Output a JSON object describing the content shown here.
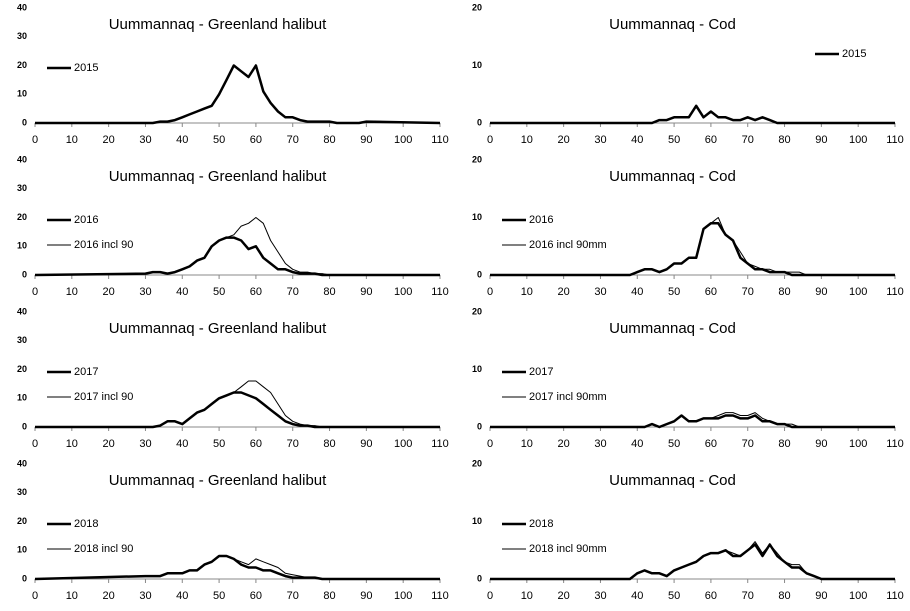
{
  "chart_data": [
    {
      "type": "line",
      "title": "Uummannaq - Greenland halibut",
      "legend": "left",
      "x": [
        0,
        30,
        32,
        34,
        36,
        38,
        40,
        42,
        44,
        46,
        48,
        50,
        52,
        54,
        56,
        58,
        60,
        62,
        64,
        66,
        68,
        70,
        72,
        74,
        76,
        78,
        80,
        82,
        84,
        86,
        88,
        90,
        110
      ],
      "xlim": [
        0,
        110
      ],
      "xticks": [
        0,
        10,
        20,
        30,
        40,
        50,
        60,
        70,
        80,
        90,
        100,
        110
      ],
      "ylim": [
        0,
        40
      ],
      "yticks": [
        0,
        10,
        20,
        30,
        40
      ],
      "series": [
        {
          "name": "2015",
          "color": "#000000",
          "width": 2.5,
          "values": [
            0,
            0,
            0,
            0.5,
            0.5,
            1,
            2,
            3,
            4,
            5,
            6,
            10,
            15,
            20,
            18,
            16,
            20,
            11,
            7,
            4,
            2,
            2,
            1,
            0.5,
            0.5,
            0.5,
            0.5,
            0,
            0,
            0,
            0,
            0.5,
            0
          ]
        }
      ]
    },
    {
      "type": "line",
      "title": "Uummannaq - Cod",
      "legend": "right",
      "x": [
        0,
        30,
        32,
        34,
        36,
        38,
        40,
        42,
        44,
        46,
        48,
        50,
        52,
        54,
        56,
        58,
        60,
        62,
        64,
        66,
        68,
        70,
        72,
        74,
        76,
        78,
        80,
        82,
        84,
        86,
        88,
        90,
        110
      ],
      "xlim": [
        0,
        110
      ],
      "xticks": [
        0,
        10,
        20,
        30,
        40,
        50,
        60,
        70,
        80,
        90,
        100,
        110
      ],
      "ylim": [
        0,
        20
      ],
      "yticks": [
        0,
        10,
        20
      ],
      "series": [
        {
          "name": "2015",
          "color": "#000000",
          "width": 2.5,
          "values": [
            0,
            0,
            0,
            0,
            0,
            0,
            0,
            0,
            0,
            0.5,
            0.5,
            1,
            1,
            1,
            3,
            1,
            2,
            1,
            1,
            0.5,
            0.5,
            1,
            0.5,
            1,
            0.5,
            0,
            0,
            0,
            0,
            0,
            0,
            0,
            0
          ]
        }
      ]
    },
    {
      "type": "line",
      "title": "Uummannaq - Greenland halibut",
      "legend": "left",
      "x": [
        0,
        30,
        32,
        34,
        36,
        38,
        40,
        42,
        44,
        46,
        48,
        50,
        52,
        54,
        56,
        58,
        60,
        62,
        64,
        66,
        68,
        70,
        72,
        74,
        76,
        78,
        80,
        82,
        84,
        86,
        88,
        90,
        110
      ],
      "xlim": [
        0,
        110
      ],
      "xticks": [
        0,
        10,
        20,
        30,
        40,
        50,
        60,
        70,
        80,
        90,
        100,
        110
      ],
      "ylim": [
        0,
        40
      ],
      "yticks": [
        0,
        10,
        20,
        30,
        40
      ],
      "series": [
        {
          "name": "2016",
          "color": "#000000",
          "width": 2.5,
          "values": [
            0,
            0.5,
            1,
            1,
            0.5,
            1,
            2,
            3,
            5,
            6,
            10,
            12,
            13,
            13,
            12,
            9,
            10,
            6,
            4,
            2,
            2,
            1,
            0.5,
            0.5,
            0.5,
            0,
            0,
            0,
            0,
            0,
            0,
            0,
            0
          ]
        },
        {
          "name": "2016 incl 90",
          "color": "#000000",
          "width": 1,
          "values": [
            0,
            0.5,
            1,
            1,
            0.5,
            1,
            2,
            3,
            5,
            6,
            10,
            12,
            13,
            14,
            17,
            18,
            20,
            18,
            12,
            8,
            4,
            2,
            1,
            1,
            0.5,
            0.5,
            0,
            0,
            0,
            0,
            0,
            0,
            0
          ]
        }
      ]
    },
    {
      "type": "line",
      "title": "Uummannaq - Cod",
      "legend": "left",
      "x": [
        0,
        30,
        32,
        34,
        36,
        38,
        40,
        42,
        44,
        46,
        48,
        50,
        52,
        54,
        56,
        58,
        60,
        62,
        64,
        66,
        68,
        70,
        72,
        74,
        76,
        78,
        80,
        82,
        84,
        86,
        88,
        90,
        110
      ],
      "xlim": [
        0,
        110
      ],
      "xticks": [
        0,
        10,
        20,
        30,
        40,
        50,
        60,
        70,
        80,
        90,
        100,
        110
      ],
      "ylim": [
        0,
        20
      ],
      "yticks": [
        0,
        10,
        20
      ],
      "series": [
        {
          "name": "2016",
          "color": "#000000",
          "width": 2.5,
          "values": [
            0,
            0,
            0,
            0,
            0,
            0,
            0.5,
            1,
            1,
            0.5,
            1,
            2,
            2,
            3,
            3,
            8,
            9,
            9,
            7,
            6,
            3,
            2,
            1,
            1,
            0.5,
            0.5,
            0.5,
            0,
            0,
            0,
            0,
            0,
            0
          ]
        },
        {
          "name": "2016 incl 90mm",
          "color": "#000000",
          "width": 1,
          "values": [
            0,
            0,
            0,
            0,
            0,
            0,
            0.5,
            1,
            1,
            0.5,
            1,
            2,
            2,
            3,
            3,
            8,
            9,
            10,
            7,
            6,
            4,
            2,
            1.5,
            1,
            1,
            0.5,
            0.5,
            0.5,
            0.5,
            0,
            0,
            0,
            0
          ]
        }
      ]
    },
    {
      "type": "line",
      "title": "Uummannaq - Greenland halibut",
      "legend": "left",
      "x": [
        0,
        30,
        32,
        34,
        36,
        38,
        40,
        42,
        44,
        46,
        48,
        50,
        52,
        54,
        56,
        58,
        60,
        62,
        64,
        66,
        68,
        70,
        72,
        74,
        76,
        78,
        80,
        82,
        84,
        86,
        88,
        90,
        110
      ],
      "xlim": [
        0,
        110
      ],
      "xticks": [
        0,
        10,
        20,
        30,
        40,
        50,
        60,
        70,
        80,
        90,
        100,
        110
      ],
      "ylim": [
        0,
        40
      ],
      "yticks": [
        0,
        10,
        20,
        30,
        40
      ],
      "series": [
        {
          "name": "2017",
          "color": "#000000",
          "width": 2.5,
          "values": [
            0,
            0,
            0,
            0.5,
            2,
            2,
            1,
            3,
            5,
            6,
            8,
            10,
            11,
            12,
            12,
            11,
            10,
            8,
            6,
            4,
            2,
            1,
            0.5,
            0.5,
            0,
            0,
            0,
            0,
            0,
            0,
            0,
            0,
            0
          ]
        },
        {
          "name": "2017 incl 90",
          "color": "#000000",
          "width": 1,
          "values": [
            0,
            0,
            0,
            0.5,
            2,
            2,
            1,
            3,
            5,
            6,
            8,
            10,
            11,
            12,
            14,
            16,
            16,
            14,
            12,
            8,
            4,
            2,
            1,
            0.5,
            0.5,
            0,
            0,
            0,
            0,
            0,
            0,
            0,
            0
          ]
        }
      ]
    },
    {
      "type": "line",
      "title": "Uummannaq - Cod",
      "legend": "left",
      "x": [
        0,
        30,
        32,
        34,
        36,
        38,
        40,
        42,
        44,
        46,
        48,
        50,
        52,
        54,
        56,
        58,
        60,
        62,
        64,
        66,
        68,
        70,
        72,
        74,
        76,
        78,
        80,
        82,
        84,
        86,
        88,
        90,
        110
      ],
      "xlim": [
        0,
        110
      ],
      "xticks": [
        0,
        10,
        20,
        30,
        40,
        50,
        60,
        70,
        80,
        90,
        100,
        110
      ],
      "ylim": [
        0,
        20
      ],
      "yticks": [
        0,
        10,
        20
      ],
      "series": [
        {
          "name": "2017",
          "color": "#000000",
          "width": 2.5,
          "values": [
            0,
            0,
            0,
            0,
            0,
            0,
            0,
            0,
            0.5,
            0,
            0.5,
            1,
            2,
            1,
            1,
            1.5,
            1.5,
            1.5,
            2,
            2,
            1.5,
            1.5,
            2,
            1,
            1,
            0.5,
            0.5,
            0,
            0,
            0,
            0,
            0,
            0
          ]
        },
        {
          "name": "2017 incl 90mm",
          "color": "#000000",
          "width": 1,
          "values": [
            0,
            0,
            0,
            0,
            0,
            0,
            0,
            0,
            0.5,
            0,
            0.5,
            1,
            2,
            1,
            1,
            1.5,
            1.5,
            2,
            2.5,
            2.5,
            2,
            2,
            2.5,
            1.5,
            1,
            0.5,
            0.5,
            0.5,
            0,
            0,
            0,
            0,
            0
          ]
        }
      ]
    },
    {
      "type": "line",
      "title": "Uummannaq - Greenland halibut",
      "legend": "left",
      "x": [
        0,
        30,
        32,
        34,
        36,
        38,
        40,
        42,
        44,
        46,
        48,
        50,
        52,
        54,
        56,
        58,
        60,
        62,
        64,
        66,
        68,
        70,
        72,
        74,
        76,
        78,
        80,
        82,
        84,
        86,
        88,
        90,
        110
      ],
      "xlim": [
        0,
        110
      ],
      "xticks": [
        0,
        10,
        20,
        30,
        40,
        50,
        60,
        70,
        80,
        90,
        100,
        110
      ],
      "ylim": [
        0,
        40
      ],
      "yticks": [
        0,
        10,
        20,
        30,
        40
      ],
      "series": [
        {
          "name": "2018",
          "color": "#000000",
          "width": 2.5,
          "values": [
            0,
            1,
            1,
            1,
            2,
            2,
            2,
            3,
            3,
            5,
            6,
            8,
            8,
            7,
            5,
            4,
            4,
            3,
            3,
            2,
            1,
            0.5,
            0.5,
            0.5,
            0.5,
            0,
            0,
            0,
            0,
            0,
            0,
            0,
            0
          ]
        },
        {
          "name": "2018 incl 90",
          "color": "#000000",
          "width": 1,
          "values": [
            0,
            1,
            1,
            1,
            2,
            2,
            2,
            3,
            3,
            5,
            6,
            8,
            8,
            7,
            6,
            5,
            7,
            6,
            5,
            4,
            2,
            1.5,
            1,
            0.5,
            0.5,
            0,
            0,
            0,
            0,
            0,
            0,
            0,
            0
          ]
        }
      ]
    },
    {
      "type": "line",
      "title": "Uummannaq - Cod",
      "legend": "left",
      "x": [
        0,
        30,
        32,
        34,
        36,
        38,
        40,
        42,
        44,
        46,
        48,
        50,
        52,
        54,
        56,
        58,
        60,
        62,
        64,
        66,
        68,
        70,
        72,
        74,
        76,
        78,
        80,
        82,
        84,
        86,
        88,
        90,
        110
      ],
      "xlim": [
        0,
        110
      ],
      "xticks": [
        0,
        10,
        20,
        30,
        40,
        50,
        60,
        70,
        80,
        90,
        100,
        110
      ],
      "ylim": [
        0,
        20
      ],
      "yticks": [
        0,
        10,
        20
      ],
      "series": [
        {
          "name": "2018",
          "color": "#000000",
          "width": 2.5,
          "values": [
            0,
            0,
            0,
            0,
            0,
            0,
            1,
            1.5,
            1,
            1,
            0.5,
            1.5,
            2,
            2.5,
            3,
            4,
            4.5,
            4.5,
            5,
            4,
            4,
            5,
            6,
            4,
            6,
            4,
            3,
            2,
            2,
            1,
            0.5,
            0,
            0
          ]
        },
        {
          "name": "2018 incl 90mm",
          "color": "#000000",
          "width": 1,
          "values": [
            0,
            0,
            0,
            0,
            0,
            0,
            1,
            1.5,
            1,
            1,
            0.5,
            1.5,
            2,
            2.5,
            3,
            4,
            4.5,
            4.5,
            5,
            4.5,
            4,
            5,
            6.5,
            4.5,
            6,
            4.5,
            3,
            2.5,
            2.5,
            1,
            0.5,
            0,
            0
          ]
        }
      ]
    }
  ]
}
